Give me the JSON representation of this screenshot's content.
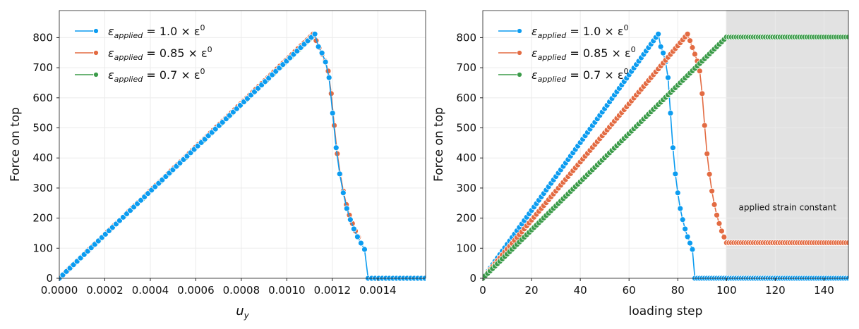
{
  "colors": {
    "blue": "#0c9cf0",
    "orange": "#e36b42",
    "green": "#3b9b49",
    "shade": "#e2e2e2",
    "grid": "#ebebeb"
  },
  "chart_data": [
    {
      "type": "line",
      "xlabel_main": "u",
      "xlabel_sub": "y",
      "ylabel": "Force on top",
      "xlim": [
        0,
        0.00161
      ],
      "ylim": [
        0,
        890
      ],
      "xticks": [
        0,
        0.0002,
        0.0004,
        0.0006,
        0.0008,
        0.001,
        0.0012,
        0.0014
      ],
      "xtick_labels": [
        "0.0000",
        "0.0002",
        "0.0004",
        "0.0006",
        "0.0008",
        "0.0010",
        "0.0012",
        "0.0014"
      ],
      "yticks": [
        0,
        100,
        200,
        300,
        400,
        500,
        600,
        700,
        800
      ],
      "ytick_labels": [
        "0",
        "100",
        "200",
        "300",
        "400",
        "500",
        "600",
        "700",
        "800"
      ],
      "grid": true,
      "legend_position": "top-left",
      "x_source": "u_y per loading step",
      "u_y_per_step": {
        "blue": 1.56e-05,
        "orange": 1.328e-05,
        "green": 1.11e-05
      },
      "series_steps": {
        "blue": [
          0,
          87
        ],
        "orange": [
          0,
          99
        ],
        "green": [
          0,
          100
        ]
      }
    },
    {
      "type": "line",
      "xlabel": "loading step",
      "ylabel": "Force on top",
      "xlim": [
        0,
        150
      ],
      "ylim": [
        0,
        890
      ],
      "xticks": [
        0,
        20,
        40,
        60,
        80,
        100,
        120,
        140
      ],
      "xtick_labels": [
        "0",
        "20",
        "40",
        "60",
        "80",
        "100",
        "120",
        "140"
      ],
      "yticks": [
        0,
        100,
        200,
        300,
        400,
        500,
        600,
        700,
        800
      ],
      "ytick_labels": [
        "0",
        "100",
        "200",
        "300",
        "400",
        "500",
        "600",
        "700",
        "800"
      ],
      "grid": true,
      "legend_position": "top-left",
      "shaded_region": {
        "x": [
          100,
          150
        ],
        "label": "applied strain constant",
        "label_y": 235
      }
    }
  ],
  "series": [
    {
      "key": "blue",
      "name": "ε_applied = 1.0 × ε^0",
      "sym": "ε",
      "sub": "applied",
      "mid": "= 1.0 × ε",
      "sup": "0",
      "keypoints": [
        [
          0,
          0
        ],
        [
          72,
          812
        ],
        [
          73,
          770
        ],
        [
          74,
          749
        ],
        [
          75,
          719
        ],
        [
          76,
          667
        ],
        [
          77,
          549
        ],
        [
          78,
          434
        ],
        [
          79,
          347
        ],
        [
          80,
          284
        ],
        [
          81,
          232
        ],
        [
          82,
          195
        ],
        [
          83,
          164
        ],
        [
          84,
          138
        ],
        [
          85,
          117
        ],
        [
          86,
          96
        ],
        [
          87,
          0
        ],
        [
          150,
          0
        ]
      ]
    },
    {
      "key": "orange",
      "name": "ε_applied = 0.85 × ε^0",
      "sym": "ε",
      "sub": "applied",
      "mid": "= 0.85 × ε",
      "sup": "0",
      "keypoints": [
        [
          0,
          0
        ],
        [
          84,
          812
        ],
        [
          85,
          790
        ],
        [
          86,
          767
        ],
        [
          87,
          745
        ],
        [
          88,
          722
        ],
        [
          89,
          689
        ],
        [
          90,
          614
        ],
        [
          91,
          508
        ],
        [
          92,
          414
        ],
        [
          93,
          346
        ],
        [
          94,
          290
        ],
        [
          95,
          245
        ],
        [
          96,
          210
        ],
        [
          97,
          182
        ],
        [
          98,
          157
        ],
        [
          99,
          137
        ],
        [
          100,
          118
        ],
        [
          150,
          118
        ]
      ]
    },
    {
      "key": "green",
      "name": "ε_applied = 0.7 × ε^0",
      "sym": "ε",
      "sub": "applied",
      "mid": "= 0.7 × ε",
      "sup": "0",
      "keypoints": [
        [
          0,
          0
        ],
        [
          100,
          802
        ],
        [
          150,
          802
        ]
      ]
    }
  ]
}
